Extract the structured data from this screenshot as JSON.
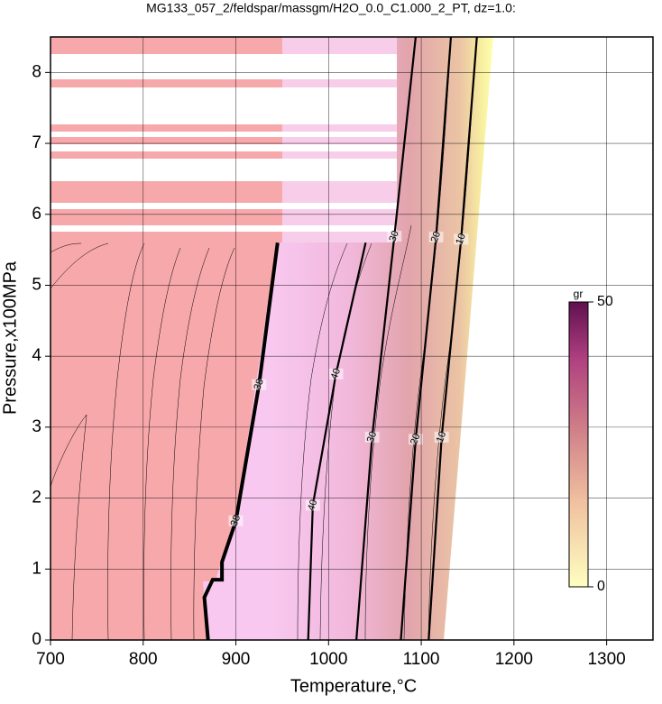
{
  "chart_data": {
    "type": "contour",
    "title": "MG133_057_2/feldspar/massgm/H2O_0.0_C1.000_2_PT, dz=1.0:",
    "x_label": "Temperature,°C",
    "y_label": "Pressure,x100MPa",
    "xlim": [
      700,
      1350
    ],
    "ylim": [
      0,
      8.5
    ],
    "xticks": [
      700,
      800,
      900,
      1000,
      1100,
      1200,
      1300
    ],
    "yticks": [
      0,
      1,
      2,
      3,
      4,
      5,
      6,
      7,
      8
    ],
    "grid": true,
    "contours": [
      {
        "level": 38,
        "x": [
          870,
          866,
          875,
          885,
          885,
          900,
          925,
          945
        ],
        "y": [
          0,
          0.6,
          0.85,
          0.85,
          1.1,
          1.68,
          3.6,
          5.6
        ]
      },
      {
        "level": 40,
        "x": [
          978,
          983,
          1008,
          1040
        ],
        "y": [
          0,
          1.9,
          3.75,
          5.6
        ]
      },
      {
        "level": 30,
        "x": [
          1030,
          1047,
          1071,
          1094
        ],
        "y": [
          0,
          2.86,
          5.69,
          8.5
        ]
      },
      {
        "level": 20,
        "x": [
          1078,
          1094,
          1116,
          1132
        ],
        "y": [
          0,
          2.83,
          5.68,
          8.5
        ]
      },
      {
        "level": 10,
        "x": [
          1108,
          1122,
          1143,
          1160
        ],
        "y": [
          0,
          2.86,
          5.65,
          8.5
        ]
      }
    ],
    "colorbar": {
      "label": "gr",
      "lim": [
        0,
        50
      ],
      "ticks": [
        0,
        50
      ]
    }
  }
}
